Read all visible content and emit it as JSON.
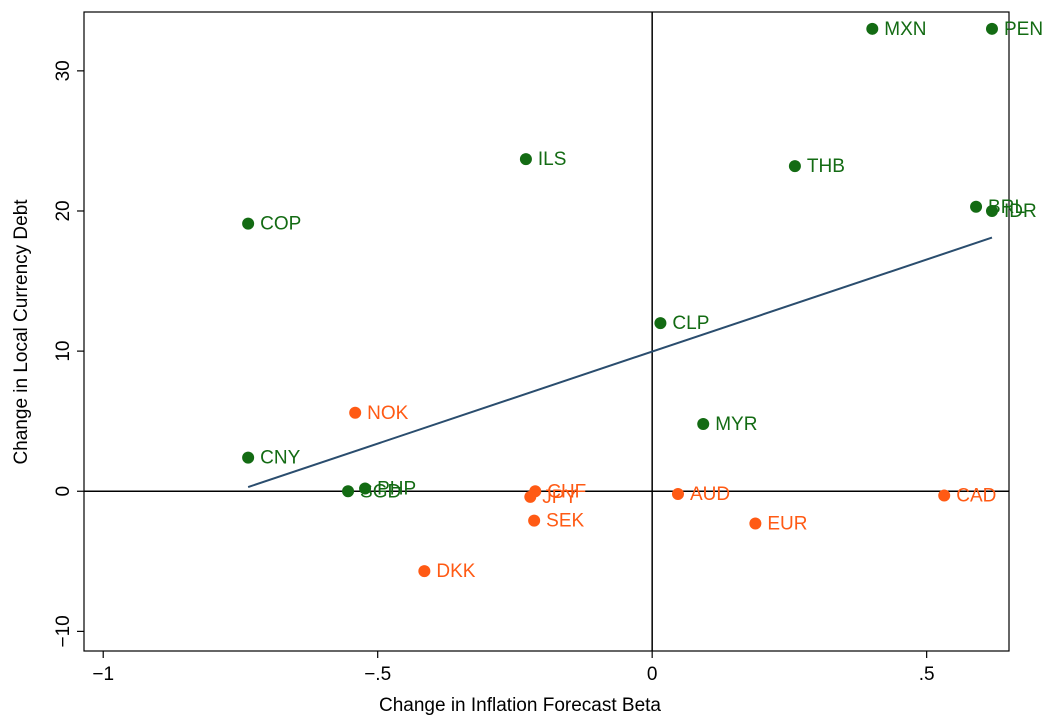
{
  "chart_data": {
    "type": "scatter",
    "xlabel": "Change in Inflation Forecast Beta",
    "ylabel": "Change in Local Currency Debt",
    "xlim": [
      -1.035,
      0.65
    ],
    "ylim": [
      -11.4,
      34.2
    ],
    "xticks": [
      {
        "value": -1,
        "label": "−1"
      },
      {
        "value": -0.5,
        "label": "−.5"
      },
      0,
      {
        "value": 0.5,
        "label": ".5"
      }
    ],
    "yticks": [
      {
        "value": -10,
        "label": "−10"
      },
      0,
      10,
      20,
      30
    ],
    "reference_lines": {
      "x": 0,
      "y": 0
    },
    "fit_line": {
      "x": [
        -0.736,
        0.619
      ],
      "y": [
        0.3,
        18.1
      ],
      "color": "#2a4d6e"
    },
    "series": [
      {
        "color": "#136b13",
        "labels": [
          "MXN",
          "PEN",
          "ILS",
          "THB",
          "BRL",
          "IDR",
          "COP",
          "CLP",
          "MYR",
          "CNY",
          "PHP",
          "SGD"
        ],
        "x": [
          0.401,
          0.619,
          -0.23,
          0.26,
          0.59,
          0.619,
          -0.736,
          0.015,
          0.093,
          -0.736,
          -0.523,
          -0.554
        ],
        "values": [
          33.0,
          33.0,
          23.7,
          23.2,
          20.3,
          20.0,
          19.1,
          12.0,
          4.8,
          2.4,
          0.2,
          0.0
        ]
      },
      {
        "color": "#ff5a14",
        "labels": [
          "NOK",
          "CHF",
          "JPY",
          "SEK",
          "AUD",
          "CAD",
          "EUR",
          "DKK"
        ],
        "x": [
          -0.541,
          -0.213,
          -0.222,
          -0.215,
          0.047,
          0.532,
          0.188,
          -0.415
        ],
        "values": [
          5.6,
          0.0,
          -0.4,
          -2.1,
          -0.2,
          -0.3,
          -2.3,
          -5.7
        ]
      }
    ]
  }
}
